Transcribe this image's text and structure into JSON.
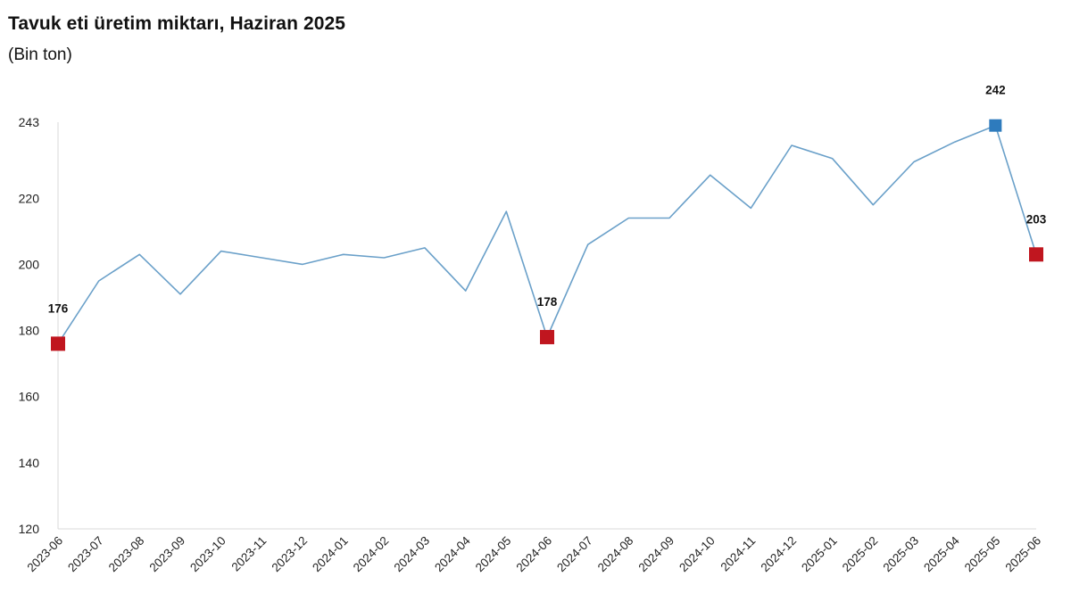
{
  "page": {
    "title": "Tavuk eti üretim miktarı, Haziran 2025",
    "subtitle": "(Bin ton)"
  },
  "colors": {
    "line": "#6aa0c9",
    "marker_low": "#c0161f",
    "marker_high": "#2e7bbd",
    "axis": "#d9d9d9",
    "text": "#222222"
  },
  "chart_data": {
    "type": "line",
    "title": "Tavuk eti üretim miktarı, Haziran 2025",
    "subtitle": "(Bin ton)",
    "xlabel": "",
    "ylabel": "",
    "categories": [
      "2023-06",
      "2023-07",
      "2023-08",
      "2023-09",
      "2023-10",
      "2023-11",
      "2023-12",
      "2024-01",
      "2024-02",
      "2024-03",
      "2024-04",
      "2024-05",
      "2024-06",
      "2024-07",
      "2024-08",
      "2024-09",
      "2024-10",
      "2024-11",
      "2024-12",
      "2025-01",
      "2025-02",
      "2025-03",
      "2025-04",
      "2025-05",
      "2025-06"
    ],
    "series": [
      {
        "values": [
          176,
          195,
          203,
          191,
          204,
          202,
          200,
          203,
          202,
          205,
          192,
          216,
          178,
          206,
          214,
          214,
          227,
          217,
          236,
          232,
          218,
          231,
          237,
          242,
          203
        ]
      }
    ],
    "highlights": [
      {
        "category": "2023-06",
        "value": 176,
        "label": "176",
        "color": "#c0161f"
      },
      {
        "category": "2024-06",
        "value": 178,
        "label": "178",
        "color": "#c0161f"
      },
      {
        "category": "2025-05",
        "value": 242,
        "label": "242",
        "color": "#2e7bbd"
      },
      {
        "category": "2025-06",
        "value": 203,
        "label": "203",
        "color": "#c0161f"
      }
    ],
    "yticks": [
      120,
      140,
      160,
      180,
      200,
      220,
      243
    ],
    "ylim": [
      120,
      243
    ],
    "grid": false,
    "legend": "none"
  }
}
